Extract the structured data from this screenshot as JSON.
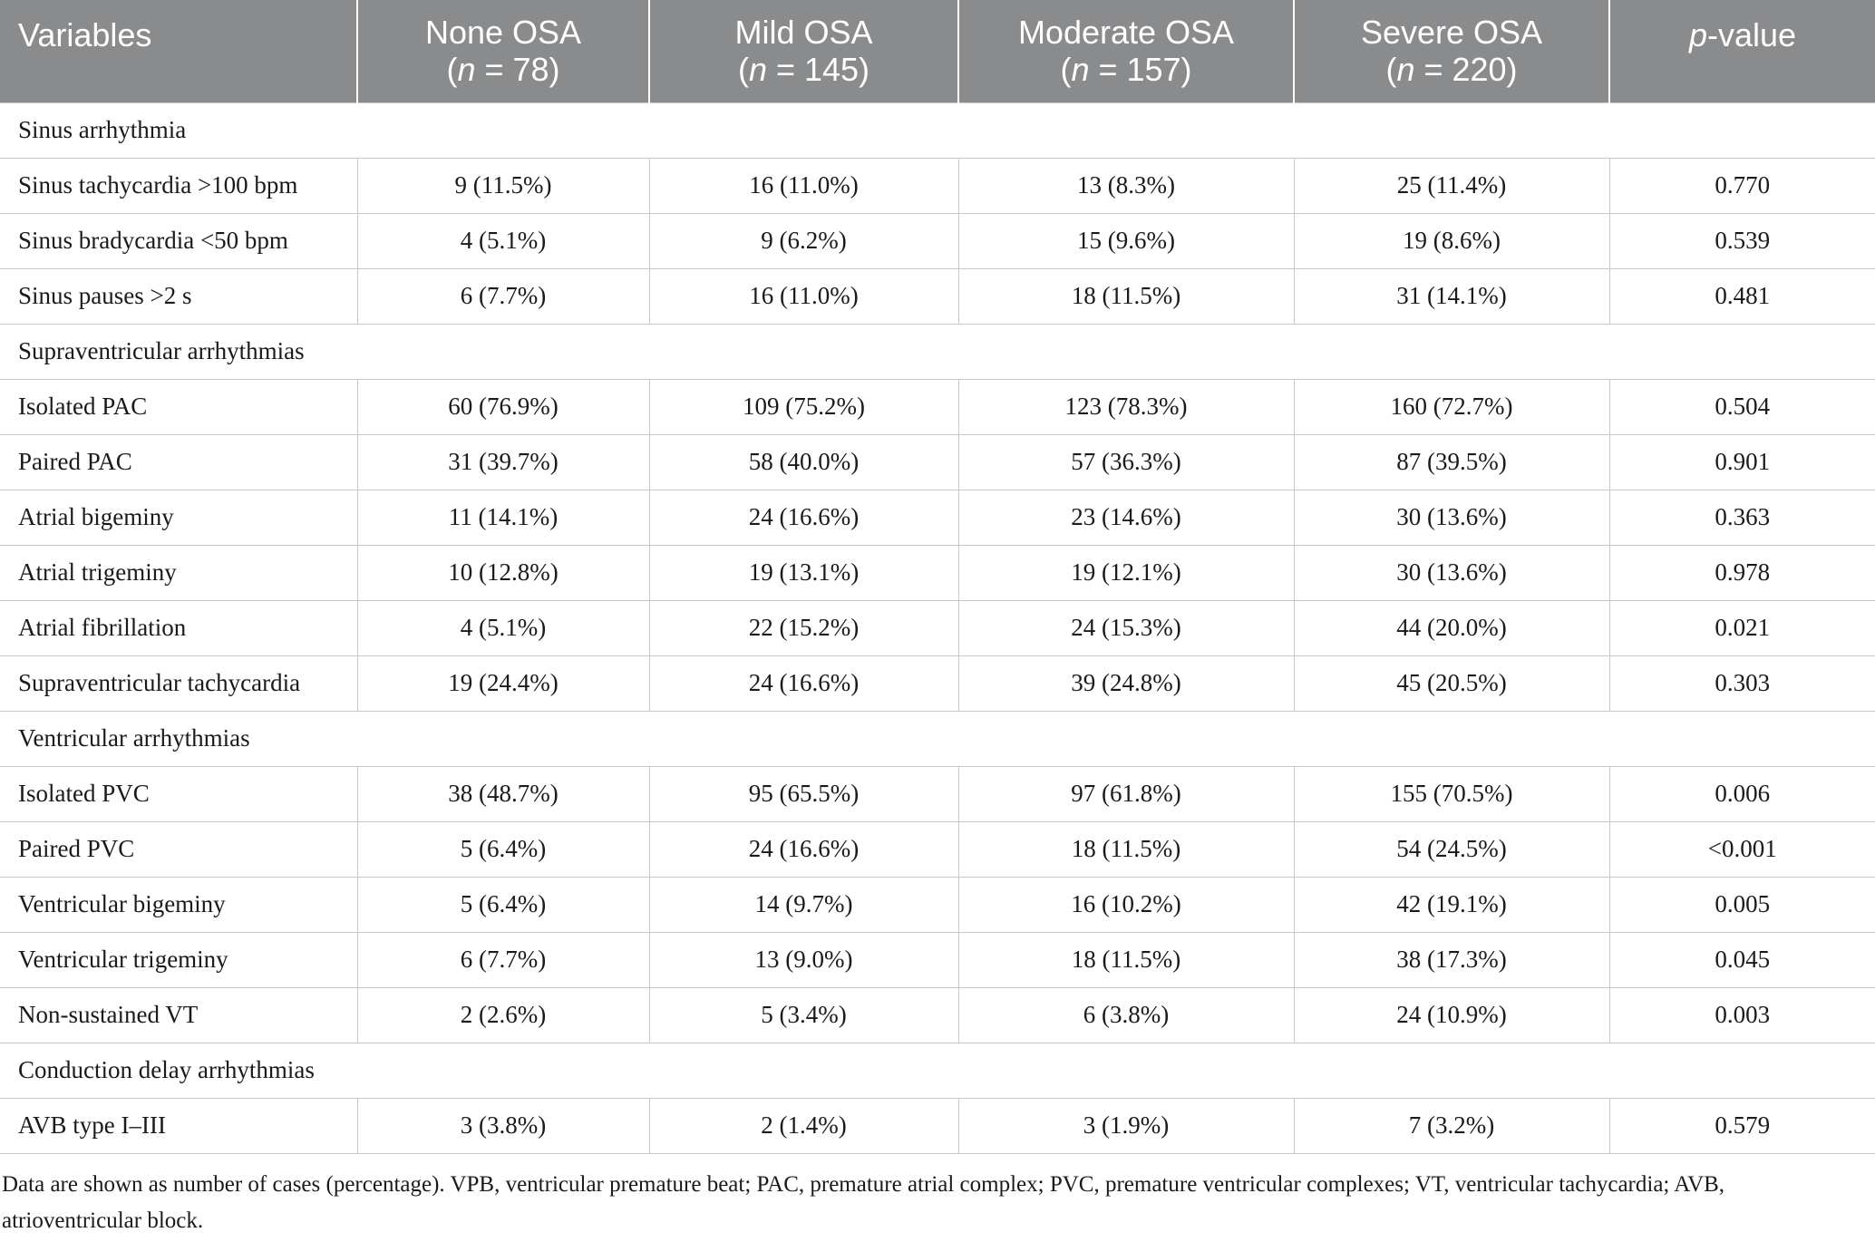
{
  "table": {
    "headers": [
      {
        "line1": "Variables",
        "line2": ""
      },
      {
        "line1": "None OSA",
        "line2_n": "n",
        "line2_rest": " = 78)"
      },
      {
        "line1": "Mild OSA",
        "line2_n": "n",
        "line2_rest": " = 145)"
      },
      {
        "line1": "Moderate OSA",
        "line2_n": "n",
        "line2_rest": " = 157)"
      },
      {
        "line1": "Severe OSA",
        "line2_n": "n",
        "line2_rest": " = 220)"
      },
      {
        "p_italic": "p",
        "p_rest": "-value"
      }
    ],
    "open_paren": "(",
    "rows": [
      {
        "section": "Sinus arrhythmia"
      },
      {
        "cells": [
          "Sinus tachycardia >100 bpm",
          "9 (11.5%)",
          "16 (11.0%)",
          "13 (8.3%)",
          "25 (11.4%)",
          "0.770"
        ]
      },
      {
        "cells": [
          "Sinus bradycardia <50 bpm",
          "4 (5.1%)",
          "9 (6.2%)",
          "15 (9.6%)",
          "19 (8.6%)",
          "0.539"
        ]
      },
      {
        "cells": [
          "Sinus pauses >2 s",
          "6 (7.7%)",
          "16 (11.0%)",
          "18 (11.5%)",
          "31 (14.1%)",
          "0.481"
        ]
      },
      {
        "section": "Supraventricular arrhythmias"
      },
      {
        "cells": [
          "Isolated PAC",
          "60 (76.9%)",
          "109 (75.2%)",
          "123 (78.3%)",
          "160 (72.7%)",
          "0.504"
        ]
      },
      {
        "cells": [
          "Paired PAC",
          "31 (39.7%)",
          "58 (40.0%)",
          "57 (36.3%)",
          "87 (39.5%)",
          "0.901"
        ]
      },
      {
        "cells": [
          "Atrial bigeminy",
          "11 (14.1%)",
          "24 (16.6%)",
          "23 (14.6%)",
          "30 (13.6%)",
          "0.363"
        ]
      },
      {
        "cells": [
          "Atrial trigeminy",
          "10 (12.8%)",
          "19 (13.1%)",
          "19 (12.1%)",
          "30 (13.6%)",
          "0.978"
        ]
      },
      {
        "cells": [
          "Atrial fibrillation",
          "4 (5.1%)",
          "22 (15.2%)",
          "24 (15.3%)",
          "44 (20.0%)",
          "0.021"
        ]
      },
      {
        "cells": [
          "Supraventricular tachycardia",
          "19 (24.4%)",
          "24 (16.6%)",
          "39 (24.8%)",
          "45 (20.5%)",
          "0.303"
        ]
      },
      {
        "section": "Ventricular arrhythmias"
      },
      {
        "cells": [
          "Isolated PVC",
          "38 (48.7%)",
          "95 (65.5%)",
          "97 (61.8%)",
          "155 (70.5%)",
          "0.006"
        ]
      },
      {
        "cells": [
          "Paired PVC",
          "5 (6.4%)",
          "24 (16.6%)",
          "18 (11.5%)",
          "54 (24.5%)",
          "<0.001"
        ]
      },
      {
        "cells": [
          "Ventricular bigeminy",
          "5 (6.4%)",
          "14 (9.7%)",
          "16 (10.2%)",
          "42 (19.1%)",
          "0.005"
        ]
      },
      {
        "cells": [
          "Ventricular trigeminy",
          "6 (7.7%)",
          "13 (9.0%)",
          "18 (11.5%)",
          "38 (17.3%)",
          "0.045"
        ]
      },
      {
        "cells": [
          "Non-sustained VT",
          "2 (2.6%)",
          "5 (3.4%)",
          "6 (3.8%)",
          "24 (10.9%)",
          "0.003"
        ]
      },
      {
        "section": "Conduction delay arrhythmias"
      },
      {
        "cells": [
          "AVB type I–III",
          "3 (3.8%)",
          "2 (1.4%)",
          "3 (1.9%)",
          "7 (3.2%)",
          "0.579"
        ]
      }
    ]
  },
  "footnote": "Data are shown as number of cases (percentage). VPB, ventricular premature beat; PAC, premature atrial complex; PVC, premature ventricular complexes; VT, ventricular tachycardia; AVB, atrioventricular block.",
  "colors": {
    "header_bg": "#8a8b8d",
    "header_text": "#ffffff",
    "grid": "#c8c8c8"
  }
}
